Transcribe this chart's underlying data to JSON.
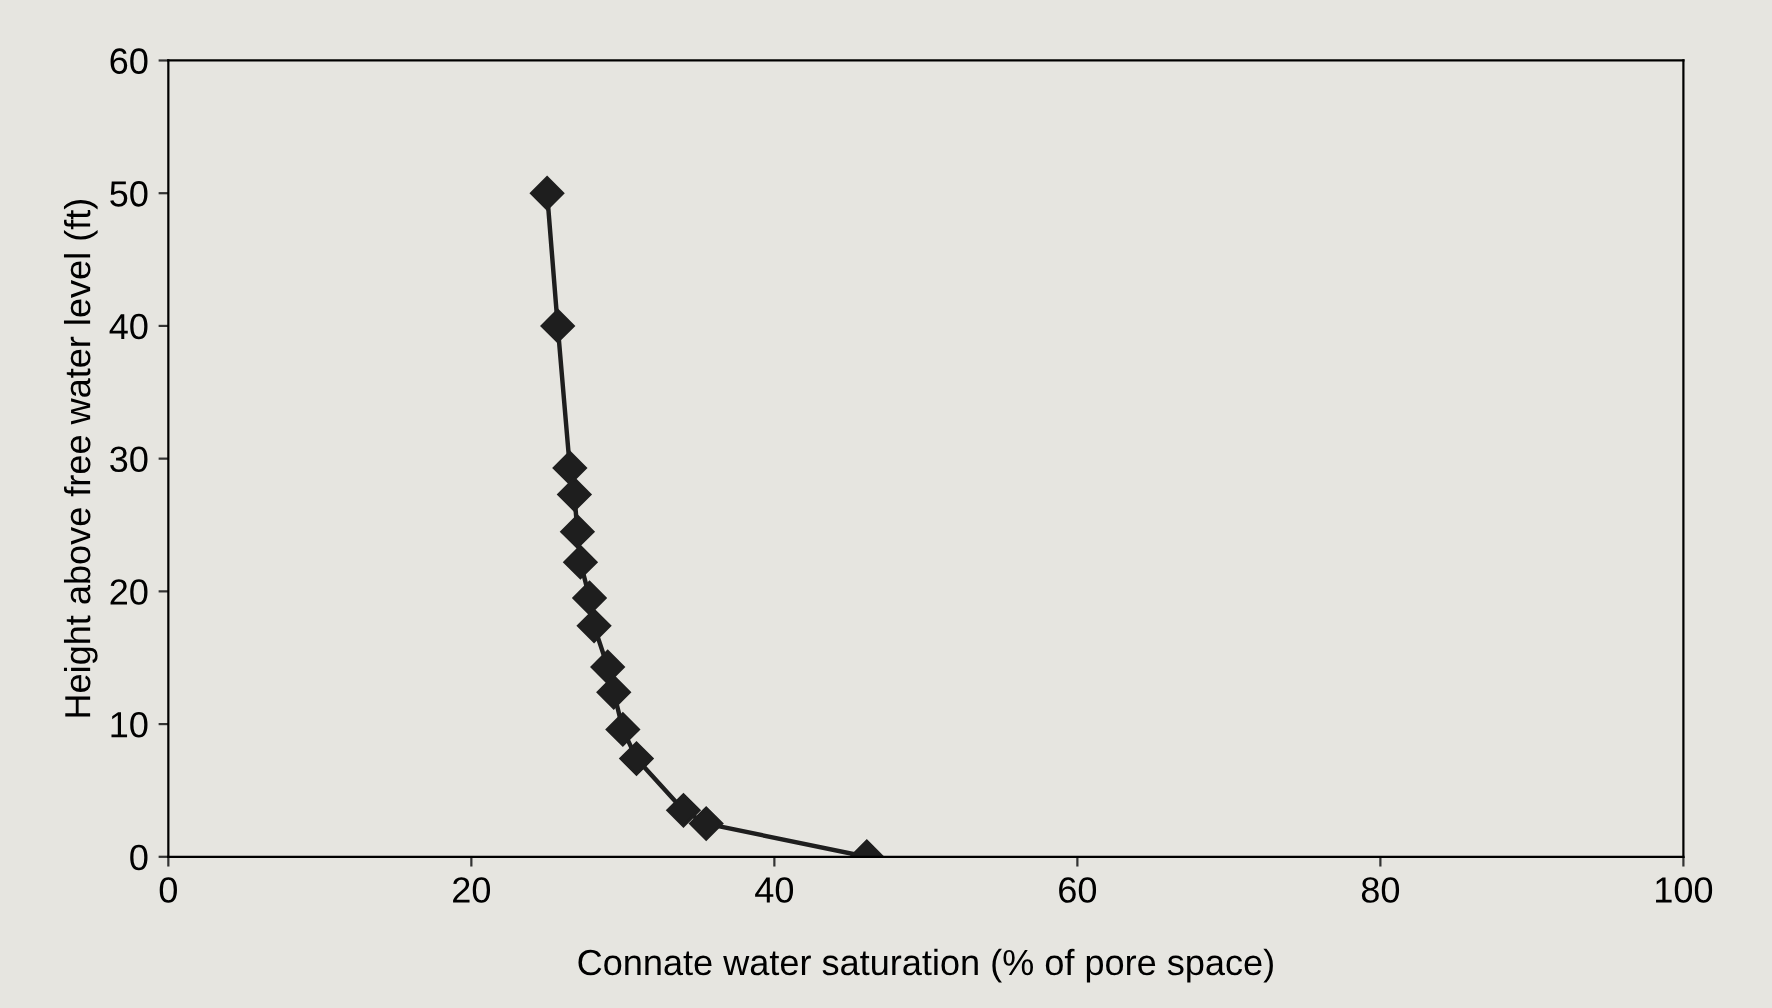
{
  "chart_data": {
    "type": "line",
    "xlabel": "Connate water saturation (% of pore space)",
    "ylabel": "Height above free water level (ft)",
    "series": [
      {
        "color": "#1e1e1e",
        "x": [
          25,
          25.7,
          26.5,
          26.8,
          27.0,
          27.2,
          27.8,
          28.1,
          29.0,
          29.4,
          30.0,
          30.9,
          34.0,
          35.5,
          46.1
        ],
        "values": [
          50,
          40,
          29.3,
          27.3,
          24.5,
          22.2,
          19.5,
          17.4,
          14.3,
          12.4,
          9.6,
          7.4,
          3.5,
          2.5,
          0
        ]
      }
    ],
    "xlim": [
      0,
      100
    ],
    "xticks": [
      0,
      20,
      40,
      60,
      80,
      100
    ],
    "ylim": [
      0,
      60
    ],
    "yticks": [
      0,
      10,
      20,
      30,
      40,
      50,
      60
    ],
    "marker": "diamond",
    "line_style": "solid",
    "grid": false,
    "legend": false
  }
}
